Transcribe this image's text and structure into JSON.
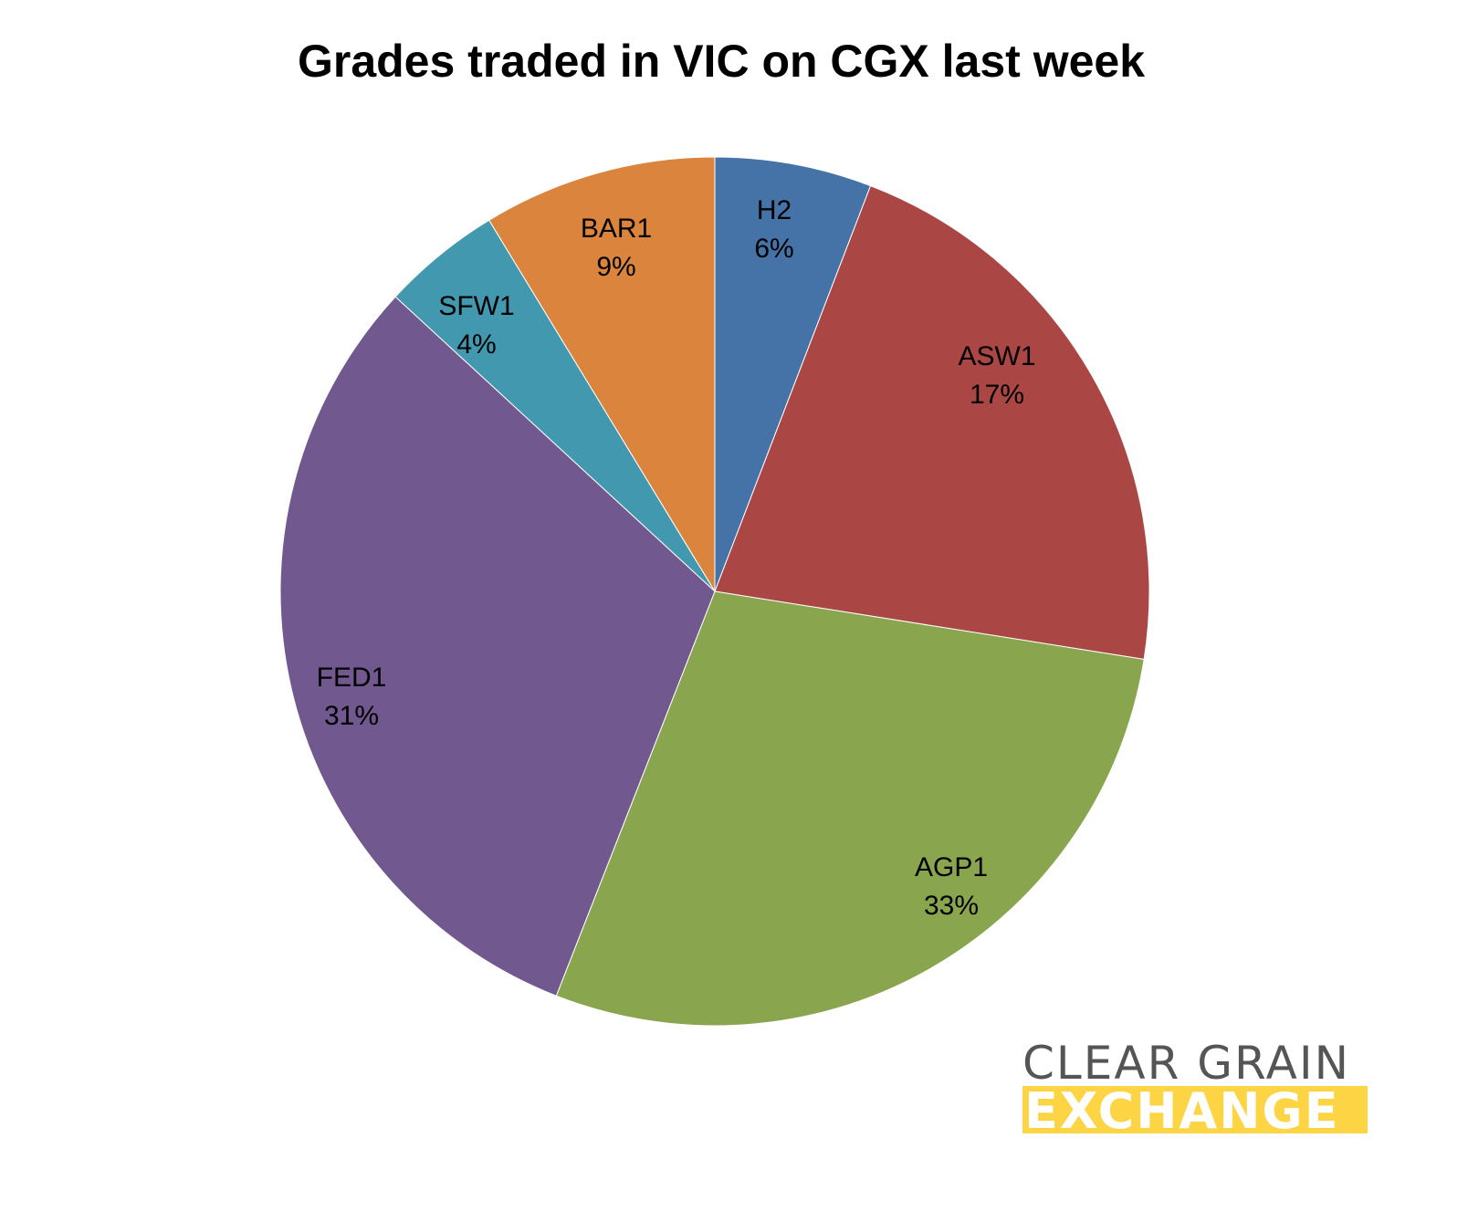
{
  "chart_data": {
    "type": "pie",
    "title": "Grades traded in VIC on CGX last week",
    "categories": [
      "H2",
      "ASW1",
      "AGP1",
      "FED1",
      "SFW1",
      "BAR1"
    ],
    "values": [
      6,
      17,
      33,
      31,
      4,
      9
    ],
    "labels": [
      "6%",
      "17%",
      "33%",
      "31%",
      "4%",
      "9%"
    ],
    "colors": [
      "#4572a7",
      "#aa4643",
      "#89a54e",
      "#71588f",
      "#4198af",
      "#db843d"
    ],
    "start_angle": "12 o'clock, clockwise",
    "legend": "none (data labels inside slices)"
  },
  "logo": {
    "line1": "CLEAR GRAIN",
    "line2": "EXCHANGE"
  }
}
